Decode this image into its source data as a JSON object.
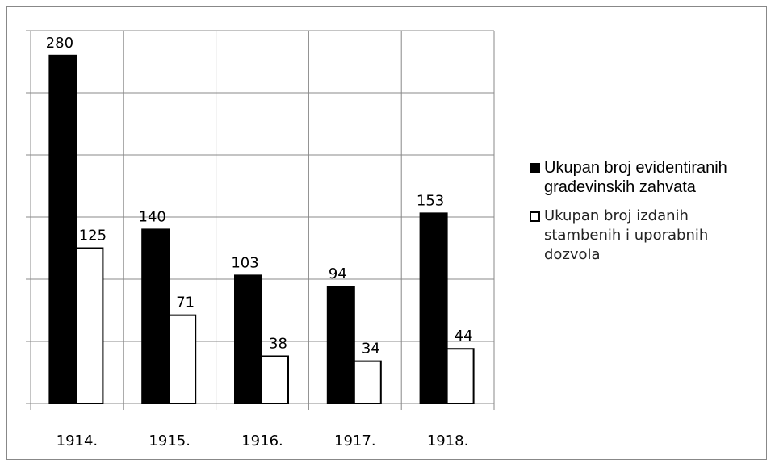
{
  "chart_data": {
    "type": "bar",
    "categories": [
      "1914.",
      "1915.",
      "1916.",
      "1917.",
      "1918."
    ],
    "series": [
      {
        "name": "Ukupan broj evidentiranih građevinskih zahvata",
        "color": "#000000",
        "values": [
          280,
          140,
          103,
          94,
          153
        ]
      },
      {
        "name": "Ukupan broj izdanih stambenih i uporabnih dozvola",
        "color": "#ffffff",
        "values": [
          125,
          71,
          38,
          34,
          44
        ]
      }
    ],
    "ylim": [
      0,
      300
    ],
    "yticks": [
      0,
      50,
      100,
      150,
      200,
      250,
      300
    ],
    "grid": true,
    "legend": "right"
  }
}
